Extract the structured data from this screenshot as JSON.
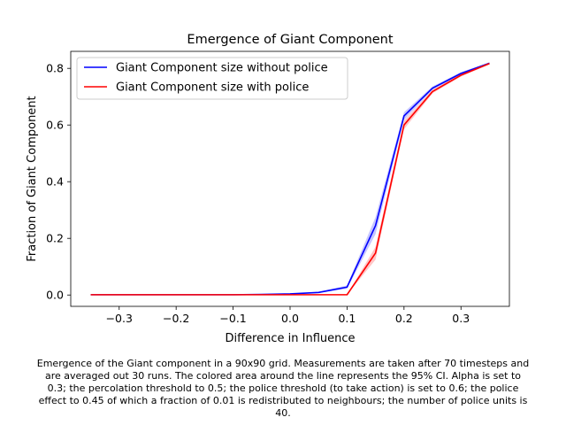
{
  "chart_data": {
    "type": "line",
    "title": "Emergence of Giant Component",
    "xlabel": "Difference in Influence",
    "ylabel": "Fraction of Giant Component",
    "xlim": [
      -0.385,
      0.385
    ],
    "ylim": [
      -0.04,
      0.86
    ],
    "xticks": [
      -0.3,
      -0.2,
      -0.1,
      0.0,
      0.1,
      0.2,
      0.3
    ],
    "xtick_labels": [
      "−0.3",
      "−0.2",
      "−0.1",
      "0.0",
      "0.1",
      "0.2",
      "0.3"
    ],
    "yticks": [
      0.0,
      0.2,
      0.4,
      0.6,
      0.8
    ],
    "ytick_labels": [
      "0.0",
      "0.2",
      "0.4",
      "0.6",
      "0.8"
    ],
    "grid": false,
    "legend_position": "top-left",
    "x": [
      -0.35,
      -0.3,
      -0.25,
      -0.2,
      -0.15,
      -0.1,
      -0.05,
      0.0,
      0.05,
      0.1,
      0.15,
      0.2,
      0.25,
      0.3,
      0.35
    ],
    "series": [
      {
        "name": "Giant Component size without police",
        "color": "#0000ff",
        "band_color": "#b3b3ff",
        "values": [
          0.001,
          0.001,
          0.001,
          0.001,
          0.001,
          0.001,
          0.002,
          0.004,
          0.009,
          0.028,
          0.245,
          0.632,
          0.73,
          0.782,
          0.818
        ],
        "ci_low": [
          0.001,
          0.001,
          0.001,
          0.001,
          0.001,
          0.001,
          0.002,
          0.003,
          0.007,
          0.022,
          0.215,
          0.618,
          0.724,
          0.777,
          0.815
        ],
        "ci_high": [
          0.001,
          0.001,
          0.001,
          0.001,
          0.001,
          0.001,
          0.002,
          0.005,
          0.011,
          0.034,
          0.275,
          0.645,
          0.736,
          0.787,
          0.821
        ]
      },
      {
        "name": "Giant Component size with police",
        "color": "#ff0000",
        "band_color": "#ffb3b3",
        "values": [
          0.001,
          0.001,
          0.001,
          0.001,
          0.001,
          0.001,
          0.001,
          0.001,
          0.001,
          0.001,
          0.148,
          0.6,
          0.718,
          0.776,
          0.817
        ],
        "ci_low": [
          0.001,
          0.001,
          0.001,
          0.001,
          0.001,
          0.001,
          0.001,
          0.001,
          0.001,
          0.001,
          0.125,
          0.585,
          0.712,
          0.771,
          0.814
        ],
        "ci_high": [
          0.001,
          0.001,
          0.001,
          0.001,
          0.001,
          0.001,
          0.001,
          0.001,
          0.001,
          0.001,
          0.17,
          0.615,
          0.724,
          0.781,
          0.82
        ]
      }
    ]
  },
  "caption": {
    "lines": [
      "Emergence of the Giant component in a 90x90 grid. Measurements are taken after 70 timesteps and",
      "are averaged out 30 runs. The colored area around the line represents the 95% CI. Alpha is set to",
      "0.3; the percolation threshold to 0.5; the police threshold (to take action) is set to 0.6; the police",
      "effect to 0.45 of which a fraction of 0.01 is redistributed to neighbours; the number of police units is",
      "40."
    ]
  }
}
